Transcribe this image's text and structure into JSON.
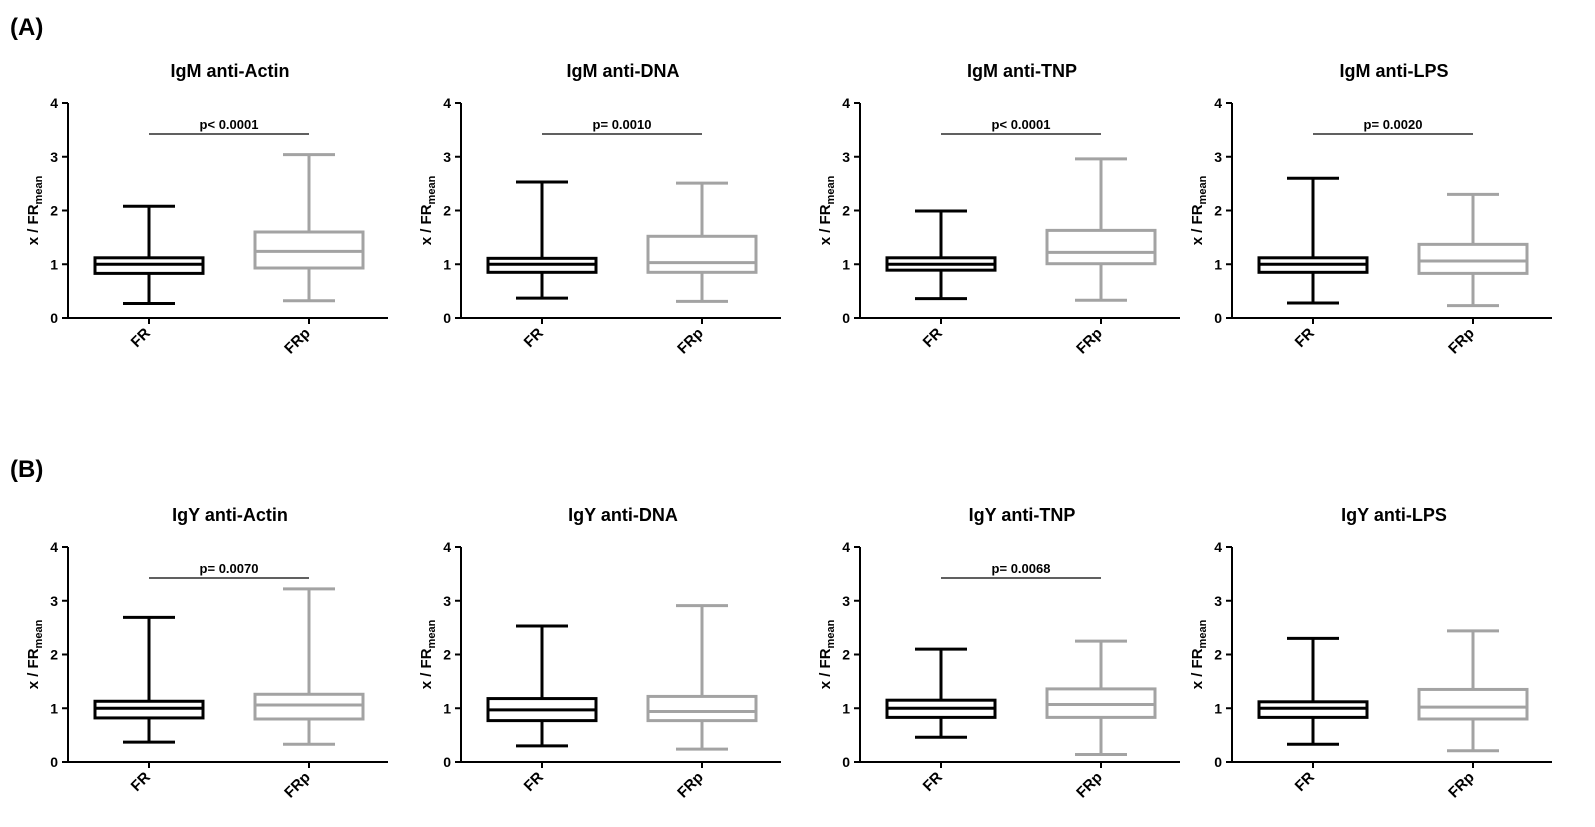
{
  "panels": [
    {
      "label": "(A)"
    },
    {
      "label": "(B)"
    }
  ],
  "ylabel_main": "x / FR",
  "ylabel_sub": "mean",
  "colors": {
    "FR": "#000000",
    "FRp": "#a3a3a3",
    "axis": "#000000"
  },
  "chart_data": [
    {
      "type": "box",
      "title": "IgM anti-Actin",
      "categories": [
        "FR",
        "FRp"
      ],
      "ylim": [
        0,
        4
      ],
      "yticks": [
        0,
        1,
        2,
        3,
        4
      ],
      "pvalue": "p< 0.0001",
      "boxes": [
        {
          "min": 0.27,
          "q1": 0.83,
          "median": 1.0,
          "q3": 1.12,
          "max": 2.08
        },
        {
          "min": 0.32,
          "q1": 0.93,
          "median": 1.24,
          "q3": 1.6,
          "max": 3.04
        }
      ]
    },
    {
      "type": "box",
      "title": "IgM anti-DNA",
      "categories": [
        "FR",
        "FRp"
      ],
      "ylim": [
        0,
        4
      ],
      "yticks": [
        0,
        1,
        2,
        3,
        4
      ],
      "pvalue": "p= 0.0010",
      "boxes": [
        {
          "min": 0.37,
          "q1": 0.85,
          "median": 1.0,
          "q3": 1.11,
          "max": 2.53
        },
        {
          "min": 0.31,
          "q1": 0.85,
          "median": 1.03,
          "q3": 1.52,
          "max": 2.51
        }
      ]
    },
    {
      "type": "box",
      "title": "IgM anti-TNP",
      "categories": [
        "FR",
        "FRp"
      ],
      "ylim": [
        0,
        4
      ],
      "yticks": [
        0,
        1,
        2,
        3,
        4
      ],
      "pvalue": "p< 0.0001",
      "boxes": [
        {
          "min": 0.36,
          "q1": 0.89,
          "median": 1.0,
          "q3": 1.12,
          "max": 1.99
        },
        {
          "min": 0.33,
          "q1": 1.01,
          "median": 1.22,
          "q3": 1.63,
          "max": 2.96
        }
      ]
    },
    {
      "type": "box",
      "title": "IgM anti-LPS",
      "categories": [
        "FR",
        "FRp"
      ],
      "ylim": [
        0,
        4
      ],
      "yticks": [
        0,
        1,
        2,
        3,
        4
      ],
      "pvalue": "p= 0.0020",
      "boxes": [
        {
          "min": 0.28,
          "q1": 0.85,
          "median": 1.0,
          "q3": 1.12,
          "max": 2.6
        },
        {
          "min": 0.23,
          "q1": 0.83,
          "median": 1.06,
          "q3": 1.37,
          "max": 2.3
        }
      ]
    },
    {
      "type": "box",
      "title": "IgY anti-Actin",
      "categories": [
        "FR",
        "FRp"
      ],
      "ylim": [
        0,
        4
      ],
      "yticks": [
        0,
        1,
        2,
        3,
        4
      ],
      "pvalue": "p= 0.0070",
      "boxes": [
        {
          "min": 0.37,
          "q1": 0.82,
          "median": 1.0,
          "q3": 1.13,
          "max": 2.69
        },
        {
          "min": 0.33,
          "q1": 0.8,
          "median": 1.06,
          "q3": 1.26,
          "max": 3.22
        }
      ]
    },
    {
      "type": "box",
      "title": "IgY anti-DNA",
      "categories": [
        "FR",
        "FRp"
      ],
      "ylim": [
        0,
        4
      ],
      "yticks": [
        0,
        1,
        2,
        3,
        4
      ],
      "pvalue": "",
      "boxes": [
        {
          "min": 0.3,
          "q1": 0.77,
          "median": 0.97,
          "q3": 1.18,
          "max": 2.53
        },
        {
          "min": 0.24,
          "q1": 0.77,
          "median": 0.94,
          "q3": 1.22,
          "max": 2.91
        }
      ]
    },
    {
      "type": "box",
      "title": "IgY anti-TNP",
      "categories": [
        "FR",
        "FRp"
      ],
      "ylim": [
        0,
        4
      ],
      "yticks": [
        0,
        1,
        2,
        3,
        4
      ],
      "pvalue": "p= 0.0068",
      "boxes": [
        {
          "min": 0.46,
          "q1": 0.83,
          "median": 1.0,
          "q3": 1.15,
          "max": 2.1
        },
        {
          "min": 0.14,
          "q1": 0.83,
          "median": 1.07,
          "q3": 1.36,
          "max": 2.25
        }
      ]
    },
    {
      "type": "box",
      "title": "IgY anti-LPS",
      "categories": [
        "FR",
        "FRp"
      ],
      "ylim": [
        0,
        4
      ],
      "yticks": [
        0,
        1,
        2,
        3,
        4
      ],
      "pvalue": "",
      "boxes": [
        {
          "min": 0.33,
          "q1": 0.83,
          "median": 1.0,
          "q3": 1.12,
          "max": 2.3
        },
        {
          "min": 0.21,
          "q1": 0.8,
          "median": 1.02,
          "q3": 1.35,
          "max": 2.44
        }
      ]
    }
  ]
}
